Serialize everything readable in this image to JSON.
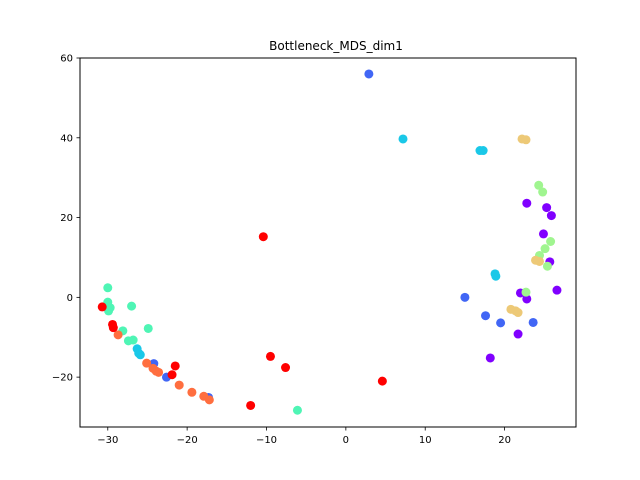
{
  "chart_data": {
    "type": "scatter",
    "title": "Bottleneck_MDS_dim1",
    "xlabel": "",
    "ylabel": "",
    "xlim": [
      -33.5,
      29
    ],
    "ylim": [
      -32.5,
      60
    ],
    "xticks": [
      -30,
      -20,
      -10,
      0,
      10,
      20
    ],
    "yticks": [
      -20,
      0,
      20,
      40,
      60
    ],
    "grid": false,
    "series": [
      {
        "color": "#8000ff",
        "points": [
          [
            22.8,
            23.6
          ],
          [
            25.3,
            22.5
          ],
          [
            25.9,
            20.5
          ],
          [
            24.9,
            15.9
          ],
          [
            25.7,
            8.9
          ],
          [
            26.6,
            1.8
          ],
          [
            22.0,
            1.1
          ],
          [
            22.8,
            -0.4
          ],
          [
            21.7,
            -9.2
          ],
          [
            18.2,
            -15.2
          ]
        ]
      },
      {
        "color": "#4166f5",
        "points": [
          [
            2.9,
            56.0
          ],
          [
            15.0,
            0.0
          ],
          [
            17.6,
            -4.6
          ],
          [
            19.5,
            -6.4
          ],
          [
            23.6,
            -6.3
          ],
          [
            -24.2,
            -16.6
          ],
          [
            -22.6,
            -20.0
          ],
          [
            -17.3,
            -25.1
          ]
        ]
      },
      {
        "color": "#1ac8e8",
        "points": [
          [
            7.2,
            39.7
          ],
          [
            16.9,
            36.8
          ],
          [
            17.3,
            36.8
          ],
          [
            18.8,
            5.9
          ],
          [
            18.9,
            5.3
          ],
          [
            -26.3,
            -12.9
          ],
          [
            -26.1,
            -14.0
          ],
          [
            -25.9,
            -14.4
          ]
        ]
      },
      {
        "color": "#4ff5b5",
        "points": [
          [
            -30.0,
            2.4
          ],
          [
            -30.0,
            -1.2
          ],
          [
            -29.7,
            -2.6
          ],
          [
            -29.9,
            -3.4
          ],
          [
            -27.0,
            -2.2
          ],
          [
            -28.1,
            -8.4
          ],
          [
            -27.4,
            -10.9
          ],
          [
            -26.8,
            -10.7
          ],
          [
            -24.9,
            -7.8
          ],
          [
            -6.1,
            -28.3
          ]
        ]
      },
      {
        "color": "#a0f590",
        "points": [
          [
            24.3,
            28.1
          ],
          [
            24.8,
            26.4
          ],
          [
            25.8,
            14.0
          ],
          [
            25.1,
            12.2
          ],
          [
            24.4,
            10.5
          ],
          [
            25.4,
            7.8
          ],
          [
            22.7,
            1.3
          ]
        ]
      },
      {
        "color": "#edc977",
        "points": [
          [
            22.2,
            39.7
          ],
          [
            22.7,
            39.5
          ],
          [
            23.9,
            9.3
          ],
          [
            24.4,
            9.0
          ],
          [
            20.8,
            -3.0
          ],
          [
            21.4,
            -3.4
          ],
          [
            21.7,
            -3.8
          ]
        ]
      },
      {
        "color": "#ff6e3f",
        "points": [
          [
            -28.7,
            -9.4
          ],
          [
            -25.1,
            -16.5
          ],
          [
            -24.3,
            -17.8
          ],
          [
            -23.6,
            -18.8
          ],
          [
            -23.9,
            -18.5
          ],
          [
            -21.0,
            -22.0
          ],
          [
            -19.4,
            -23.8
          ],
          [
            -17.9,
            -24.8
          ],
          [
            -17.2,
            -25.7
          ]
        ]
      },
      {
        "color": "#ff0000",
        "points": [
          [
            -30.7,
            -2.4
          ],
          [
            -29.4,
            -6.8
          ],
          [
            -29.3,
            -7.6
          ],
          [
            -21.5,
            -17.2
          ],
          [
            -21.9,
            -19.4
          ],
          [
            -12.0,
            -27.1
          ],
          [
            -10.4,
            15.2
          ],
          [
            -9.5,
            -14.8
          ],
          [
            -7.6,
            -17.6
          ],
          [
            4.6,
            -21.0
          ]
        ]
      }
    ]
  }
}
